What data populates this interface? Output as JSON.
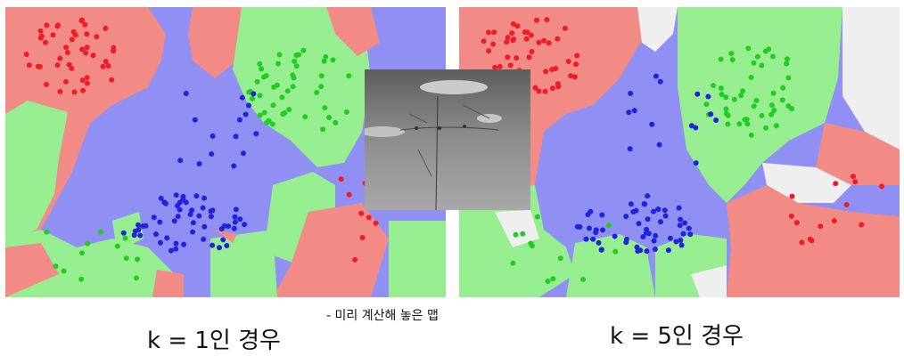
{
  "colors": {
    "red_region": "#f28b86",
    "green_region": "#96ee90",
    "blue_region": "#8f8ff4",
    "white_region": "#efefef",
    "red_point": "#ee1c24",
    "green_point": "#22cc22",
    "blue_point": "#2222dd"
  },
  "captions": {
    "left": "k = 1인 경우",
    "right": "k = 5인 경우",
    "middle": "- 미리 계산해 놓은 맵"
  },
  "inset": {
    "description_icon": "photo-icon"
  }
}
